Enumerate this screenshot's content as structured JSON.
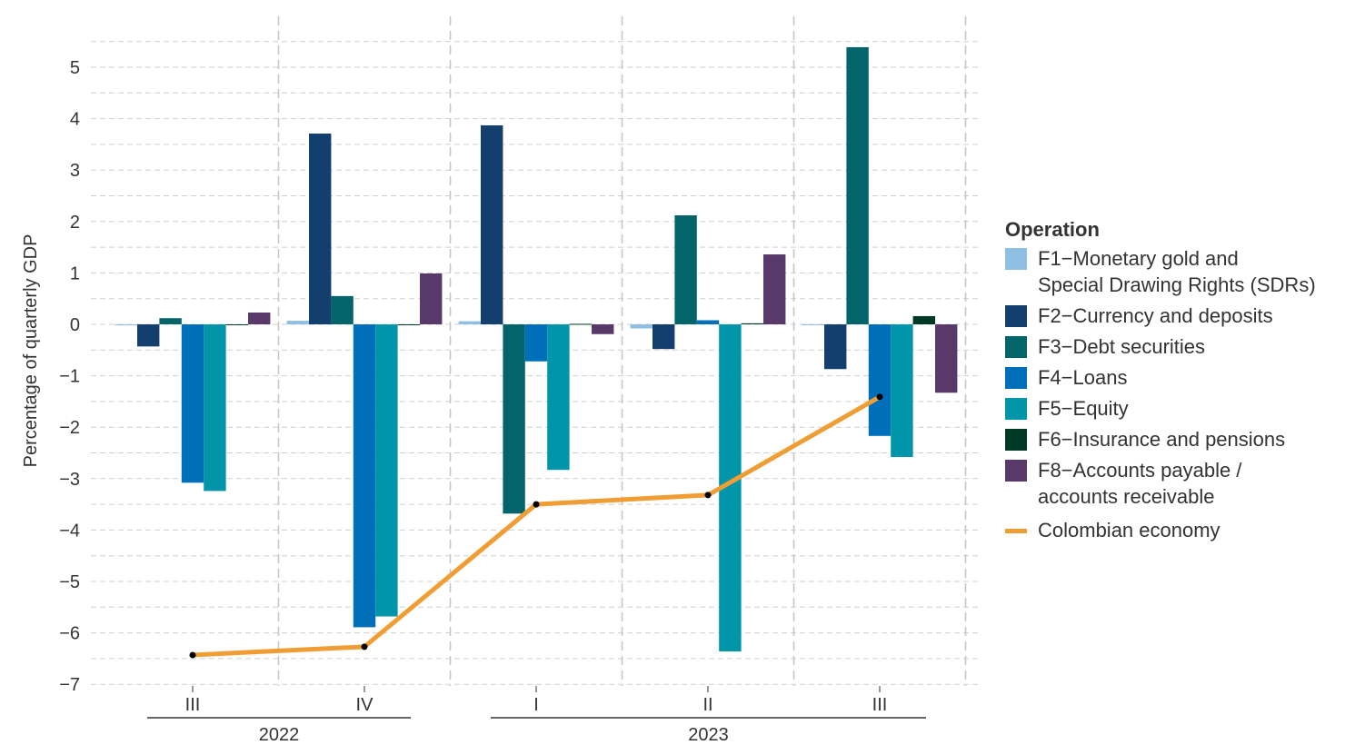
{
  "chart_data": {
    "type": "bar",
    "title": "",
    "xlabel": "",
    "ylabel": "Percentage of quarterly GDP",
    "ylim": [
      -7,
      5.5
    ],
    "yticks": [
      5,
      4,
      3,
      2,
      1,
      0,
      -1,
      -2,
      -3,
      -4,
      -5,
      -6,
      -7
    ],
    "grid": true,
    "legend_position": "right",
    "legend_title": "Operation",
    "categories": [
      "III",
      "IV",
      "I",
      "II",
      "III"
    ],
    "year_groups": [
      {
        "label": "2022",
        "categories": [
          "III",
          "IV"
        ]
      },
      {
        "label": "2023",
        "categories": [
          "I",
          "II",
          "III"
        ]
      }
    ],
    "series": [
      {
        "name": "F1−Monetary gold and\nSpecial Drawing Rights (SDRs)",
        "color": "#8fbfe3",
        "values": [
          -0.02,
          0.07,
          0.06,
          -0.08,
          -0.01
        ]
      },
      {
        "name": "F2−Currency and deposits",
        "color": "#133f6e",
        "values": [
          -0.43,
          3.71,
          3.87,
          -0.48,
          -0.87
        ]
      },
      {
        "name": "F3−Debt securities",
        "color": "#036569",
        "values": [
          0.12,
          0.55,
          -3.68,
          2.12,
          5.39
        ]
      },
      {
        "name": "F4−Loans",
        "color": "#006fba",
        "values": [
          -3.08,
          -5.89,
          -0.72,
          0.08,
          -2.17
        ]
      },
      {
        "name": "F5−Equity",
        "color": "#0095a8",
        "values": [
          -3.24,
          -5.68,
          -2.83,
          -6.36,
          -2.58
        ]
      },
      {
        "name": "F6−Insurance and pensions",
        "color": "#013927",
        "values": [
          -0.01,
          0.0,
          0.01,
          0.02,
          0.16
        ]
      },
      {
        "name": "F8−Accounts payable /\naccounts receivable",
        "color": "#58396a",
        "values": [
          0.23,
          0.99,
          -0.19,
          1.36,
          -1.33
        ]
      }
    ],
    "line_series": {
      "name": "Colombian economy",
      "color": "#f09d34",
      "values": [
        -6.43,
        -6.27,
        -3.5,
        -3.32,
        -1.41
      ]
    }
  }
}
